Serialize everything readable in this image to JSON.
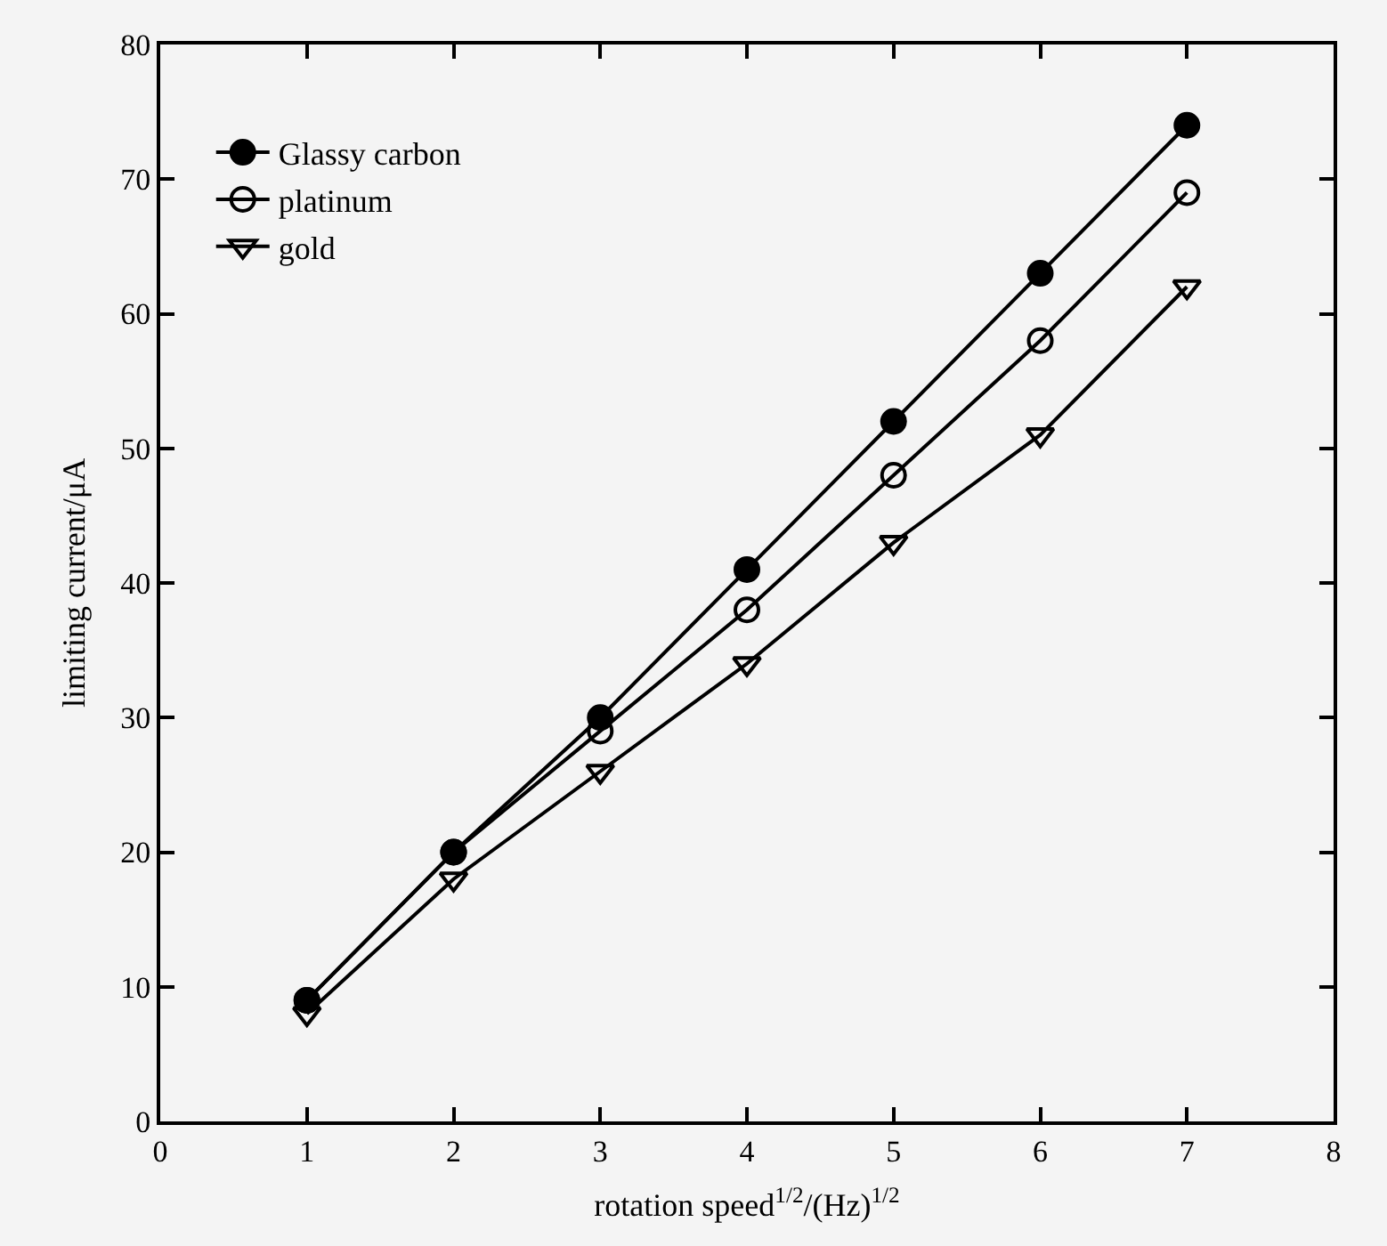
{
  "chart_data": {
    "type": "line",
    "xlabel": "rotation speed$^{1/2}$/(Hz)$^{1/2}$",
    "ylabel": "limiting current/μA",
    "x": [
      1,
      2,
      3,
      4,
      5,
      6,
      7
    ],
    "series": [
      {
        "name": "Glassy carbon",
        "color": "#000000",
        "marker": "circle",
        "values": [
          9,
          20,
          30,
          41,
          52,
          63,
          74
        ]
      },
      {
        "name": "platinum",
        "color": "#000000",
        "marker": "circle-open",
        "values": [
          9,
          20,
          29,
          38,
          48,
          58,
          69
        ]
      },
      {
        "name": "gold",
        "color": "#000000",
        "marker": "triangle-down-open",
        "values": [
          8,
          18,
          26,
          34,
          43,
          51,
          62
        ]
      }
    ],
    "xlim": [
      0,
      8
    ],
    "xticks": [
      0,
      1,
      2,
      3,
      4,
      5,
      6,
      7,
      8
    ],
    "ylim": [
      0,
      80
    ],
    "yticks": [
      0,
      10,
      20,
      30,
      40,
      50,
      60,
      70,
      80
    ],
    "grid": false,
    "legend": "top left",
    "line_style": "solid"
  }
}
